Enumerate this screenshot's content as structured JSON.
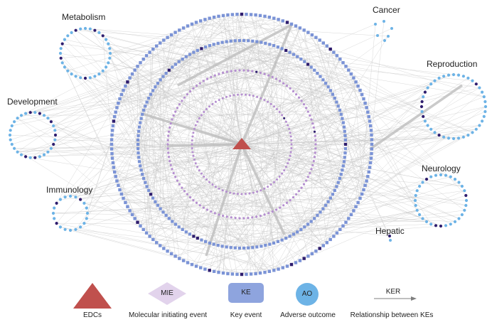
{
  "clusters": [
    {
      "name": "Metabolism"
    },
    {
      "name": "Cancer"
    },
    {
      "name": "Reproduction"
    },
    {
      "name": "Development"
    },
    {
      "name": "Neurology"
    },
    {
      "name": "Immunology"
    },
    {
      "name": "Hepatic"
    }
  ],
  "legend": {
    "edc": {
      "label": "EDCs"
    },
    "mie": {
      "label": "Molecular initiating event",
      "symbol": "MIE"
    },
    "ke": {
      "label": "Key event",
      "symbol": "KE"
    },
    "ao": {
      "label": "Adverse outcome",
      "symbol": "AO"
    },
    "ker": {
      "label": "Relationship between KEs",
      "symbol": "KER"
    }
  },
  "colors": {
    "edc": "#c0504d",
    "mie": "#b58fd0",
    "mie_legend": "#e2d3ec",
    "ke": "#7b93d6",
    "ke_legend": "#8ea4de",
    "ao": "#6db3e6",
    "highlight": "#2e1d6e",
    "edge": "#c8c8c8"
  }
}
